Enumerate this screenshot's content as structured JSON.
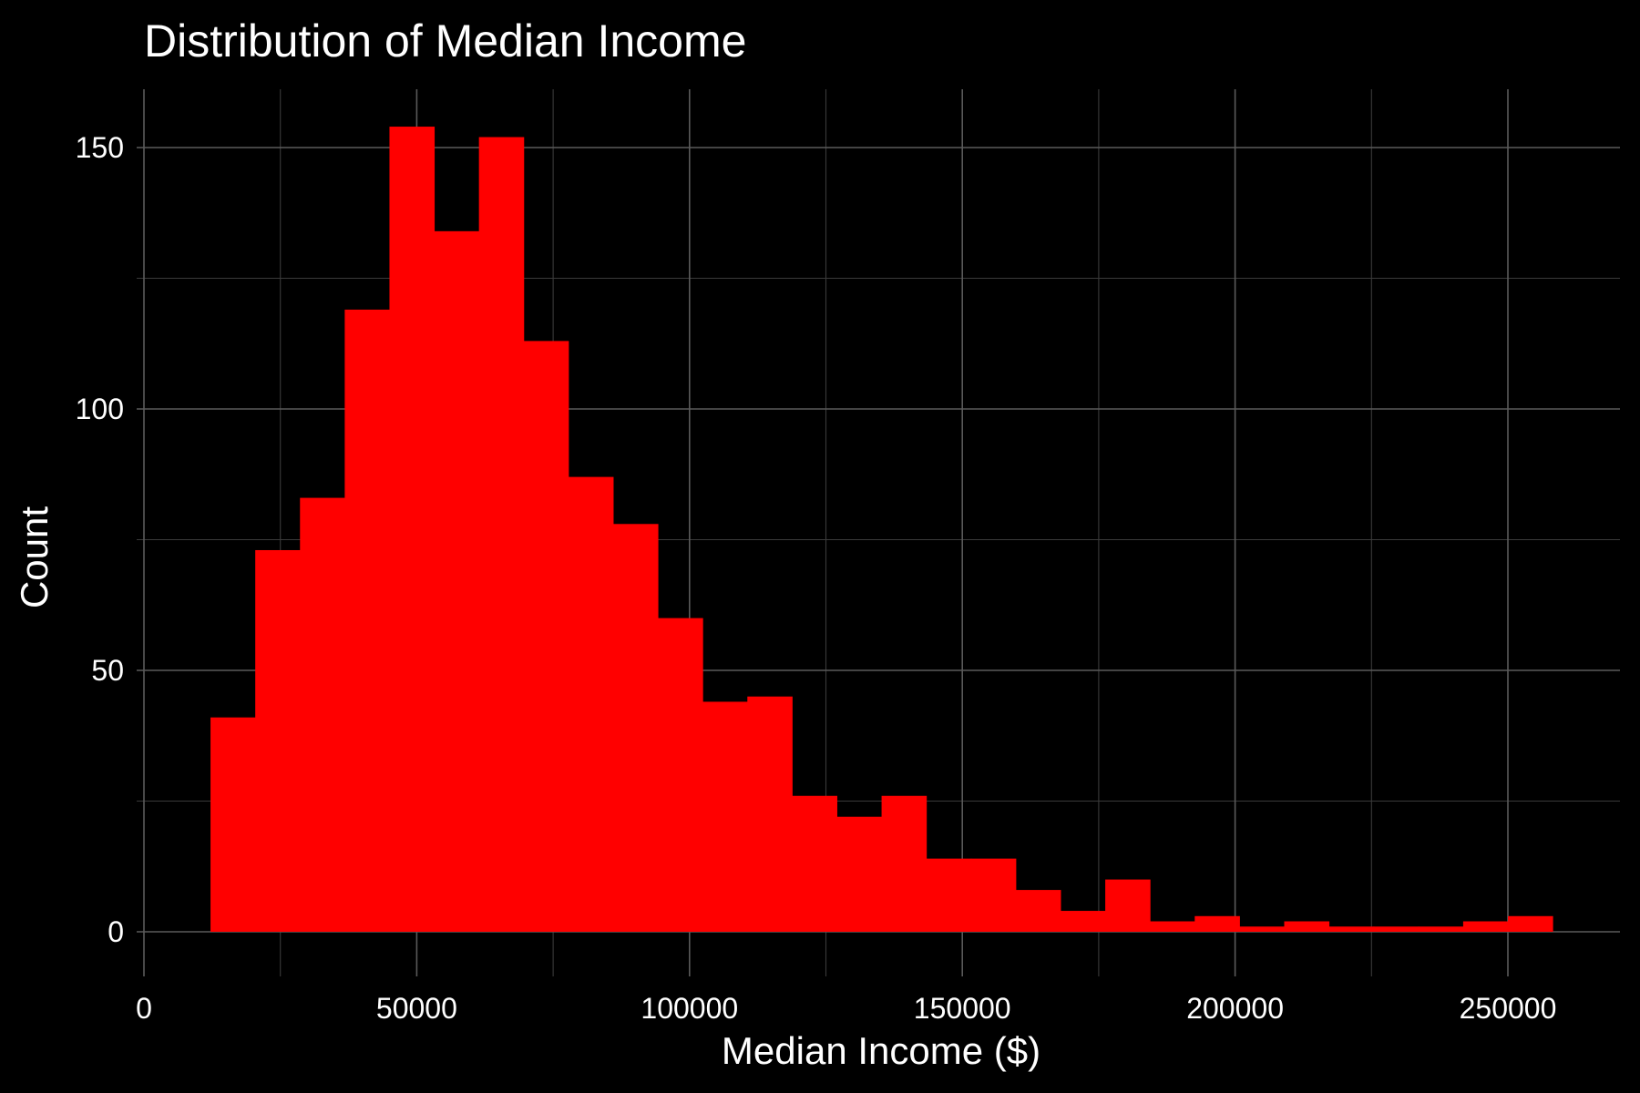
{
  "chart_data": {
    "type": "bar",
    "title": "Distribution of Median Income",
    "xlabel": "Median Income ($)",
    "ylabel": "Count",
    "bar_color": "#ff0000",
    "background_color": "#000000",
    "grid": true,
    "xlim": [
      0,
      270000
    ],
    "ylim": [
      0,
      160
    ],
    "x_ticks": [
      0,
      50000,
      100000,
      150000,
      200000,
      250000
    ],
    "y_ticks": [
      0,
      50,
      100,
      150
    ],
    "bin_width": 8200,
    "bins": [
      {
        "x0": 12200,
        "x1": 20400,
        "count": 41
      },
      {
        "x0": 20400,
        "x1": 28600,
        "count": 73
      },
      {
        "x0": 28600,
        "x1": 36800,
        "count": 83
      },
      {
        "x0": 36800,
        "x1": 45000,
        "count": 119
      },
      {
        "x0": 45000,
        "x1": 53200,
        "count": 154
      },
      {
        "x0": 53200,
        "x1": 61400,
        "count": 134
      },
      {
        "x0": 61400,
        "x1": 69600,
        "count": 152
      },
      {
        "x0": 69600,
        "x1": 77800,
        "count": 113
      },
      {
        "x0": 77800,
        "x1": 86000,
        "count": 87
      },
      {
        "x0": 86000,
        "x1": 94200,
        "count": 78
      },
      {
        "x0": 94200,
        "x1": 102400,
        "count": 60
      },
      {
        "x0": 102400,
        "x1": 110600,
        "count": 44
      },
      {
        "x0": 110600,
        "x1": 118800,
        "count": 45
      },
      {
        "x0": 118800,
        "x1": 127000,
        "count": 26
      },
      {
        "x0": 127000,
        "x1": 135200,
        "count": 22
      },
      {
        "x0": 135200,
        "x1": 143400,
        "count": 26
      },
      {
        "x0": 143400,
        "x1": 151600,
        "count": 14
      },
      {
        "x0": 151600,
        "x1": 159800,
        "count": 14
      },
      {
        "x0": 159800,
        "x1": 168000,
        "count": 8
      },
      {
        "x0": 168000,
        "x1": 176200,
        "count": 4
      },
      {
        "x0": 176200,
        "x1": 184400,
        "count": 10
      },
      {
        "x0": 184400,
        "x1": 192600,
        "count": 2
      },
      {
        "x0": 192600,
        "x1": 200800,
        "count": 3
      },
      {
        "x0": 200800,
        "x1": 209000,
        "count": 1
      },
      {
        "x0": 209000,
        "x1": 217200,
        "count": 2
      },
      {
        "x0": 217200,
        "x1": 225400,
        "count": 1
      },
      {
        "x0": 225400,
        "x1": 233600,
        "count": 1
      },
      {
        "x0": 233600,
        "x1": 241800,
        "count": 1
      },
      {
        "x0": 241800,
        "x1": 250000,
        "count": 2
      },
      {
        "x0": 250000,
        "x1": 258200,
        "count": 3
      }
    ]
  }
}
